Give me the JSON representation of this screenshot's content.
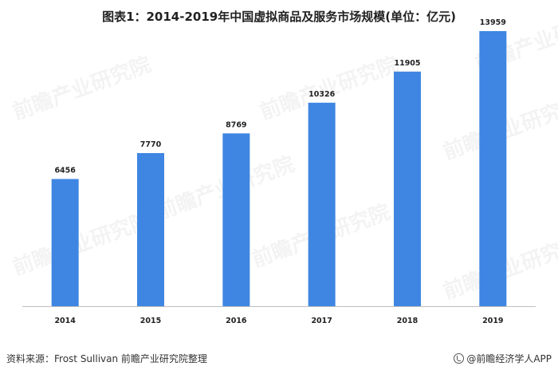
{
  "title": "图表1：2014-2019年中国虚拟商品及服务市场规模(单位：亿元)",
  "source": "资料来源：Frost Sullivan 前瞻产业研究院整理",
  "brand": "@前瞻经济学人APP",
  "watermark": "前瞻产业研究院",
  "colors": {
    "bar": "#3F86E2",
    "axis": "#BFBFBF",
    "label": "#222222"
  },
  "chart_data": {
    "type": "bar",
    "title": "图表1：2014-2019年中国虚拟商品及服务市场规模(单位：亿元)",
    "categories": [
      "2014",
      "2015",
      "2016",
      "2017",
      "2018",
      "2019"
    ],
    "values": [
      6456,
      7770,
      8769,
      10326,
      11905,
      13959
    ],
    "data_labels": [
      "6456",
      "7770",
      "8769",
      "10326",
      "11905",
      "13959"
    ],
    "xlabel": "",
    "ylabel": "",
    "ylim": [
      0,
      14000
    ],
    "grid": false,
    "legend": "none"
  }
}
